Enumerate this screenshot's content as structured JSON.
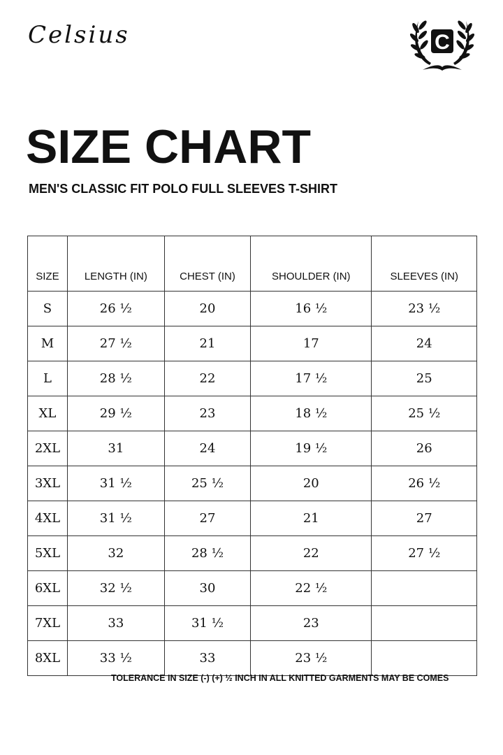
{
  "brand": "Celsius",
  "logo_letter": "C",
  "title": "SIZE CHART",
  "subtitle": "MEN'S CLASSIC FIT POLO FULL SLEEVES T-SHIRT",
  "table": {
    "headers": [
      "SIZE",
      "LENGTH (IN)",
      "CHEST (IN)",
      "SHOULDER (IN)",
      "SLEEVES (IN)"
    ],
    "rows": [
      [
        "S",
        "26 ½",
        "20",
        "16 ½",
        "23 ½"
      ],
      [
        "M",
        "27 ½",
        "21",
        "17",
        "24"
      ],
      [
        "L",
        "28 ½",
        "22",
        "17 ½",
        "25"
      ],
      [
        "XL",
        "29 ½",
        "23",
        "18 ½",
        "25 ½"
      ],
      [
        "2XL",
        "31",
        "24",
        "19 ½",
        "26"
      ],
      [
        "3XL",
        "31 ½",
        "25 ½",
        "20",
        "26 ½"
      ],
      [
        "4XL",
        "31 ½",
        "27",
        "21",
        "27"
      ],
      [
        "5XL",
        "32",
        "28 ½",
        "22",
        "27 ½"
      ],
      [
        "6XL",
        "32 ½",
        "30",
        "22 ½",
        ""
      ],
      [
        "7XL",
        "33",
        "31 ½",
        "23",
        ""
      ],
      [
        "8XL",
        "33 ½",
        "33",
        "23 ½",
        ""
      ]
    ]
  },
  "footer": "TOLERANCE IN SIZE (-) (+) ½ INCH IN ALL KNITTED GARMENTS MAY BE COMES"
}
